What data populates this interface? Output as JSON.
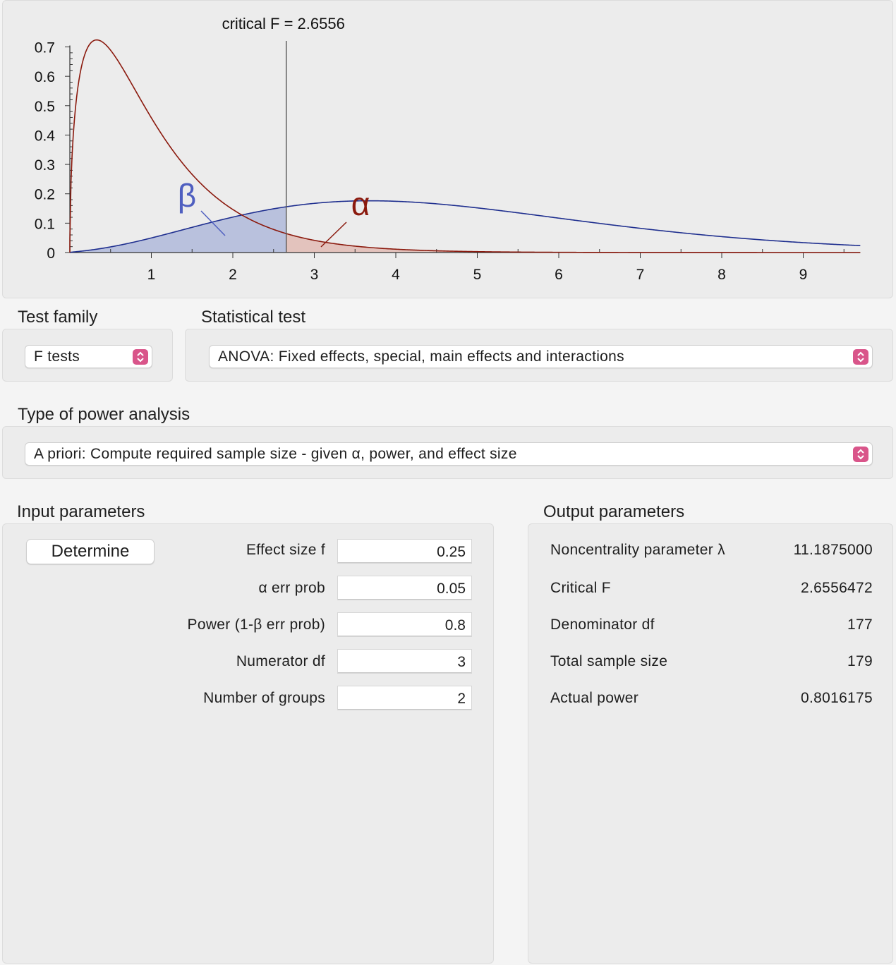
{
  "chart": {
    "critical_label": "critical F = 2.6556",
    "beta_symbol": "β",
    "alpha_symbol": "α",
    "colors": {
      "central_curve": "#8b1a0e",
      "noncentral_curve": "#1f2f8f",
      "beta_fill": "#b9c1dd",
      "alpha_fill": "#e3c3bd",
      "critical_line": "#555555"
    },
    "y_ticks": [
      "0",
      "0.1",
      "0.2",
      "0.3",
      "0.4",
      "0.5",
      "0.6",
      "0.7"
    ],
    "x_ticks": [
      "1",
      "2",
      "3",
      "4",
      "5",
      "6",
      "7",
      "8",
      "9"
    ]
  },
  "chart_data": {
    "type": "line",
    "title": "critical F = 2.6556",
    "x_range": [
      0,
      9.7
    ],
    "ylim": [
      0,
      0.7
    ],
    "critical_x": 2.6556,
    "series": [
      {
        "kind": "central F",
        "df1": 3,
        "df2": 177
      },
      {
        "kind": "noncentral F",
        "df1": 3,
        "df2": 177,
        "lambda": 11.1875
      }
    ]
  },
  "test_family": {
    "label": "Test family",
    "value": "F tests"
  },
  "statistical_test": {
    "label": "Statistical test",
    "value": "ANOVA: Fixed effects, special, main effects and interactions"
  },
  "power_analysis": {
    "label": "Type of power analysis",
    "value": "A priori: Compute required sample size - given α, power, and effect size"
  },
  "input": {
    "label": "Input parameters",
    "determine_button": "Determine",
    "params": [
      {
        "label": "Effect size f",
        "value": "0.25"
      },
      {
        "label": "α err prob",
        "value": "0.05"
      },
      {
        "label": "Power (1-β err prob)",
        "value": "0.8"
      },
      {
        "label": "Numerator df",
        "value": "3"
      },
      {
        "label": "Number of groups",
        "value": "2"
      }
    ]
  },
  "output": {
    "label": "Output parameters",
    "params": [
      {
        "label": "Noncentrality parameter λ",
        "value": "11.1875000"
      },
      {
        "label": "Critical F",
        "value": "2.6556472"
      },
      {
        "label": "Denominator df",
        "value": "177"
      },
      {
        "label": "Total sample size",
        "value": "179"
      },
      {
        "label": "Actual power",
        "value": "0.8016175"
      }
    ]
  }
}
